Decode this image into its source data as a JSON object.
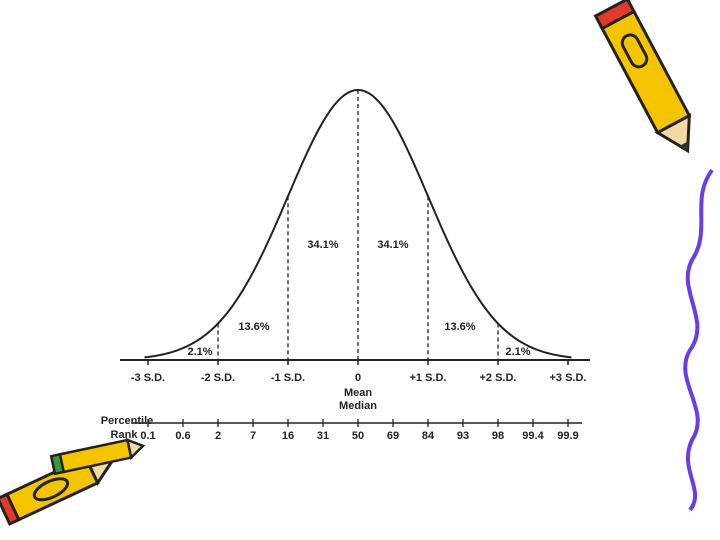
{
  "diagram": {
    "area_labels": [
      "2.1%",
      "13.6%",
      "34.1%",
      "34.1%",
      "13.6%",
      "2.1%"
    ],
    "sd_labels": [
      "-3 S.D.",
      "-2 S.D.",
      "-1 S.D.",
      "0",
      "+1 S.D.",
      "+2 S.D.",
      "+3 S.D."
    ],
    "center_labels": [
      "Mean",
      "Median"
    ],
    "percentile_title": [
      "Percentile",
      "Rank"
    ],
    "percentile_ranks": [
      "0.1",
      "0.6",
      "2",
      "7",
      "16",
      "31",
      "50",
      "69",
      "84",
      "93",
      "98",
      "99.4",
      "99.9"
    ]
  }
}
